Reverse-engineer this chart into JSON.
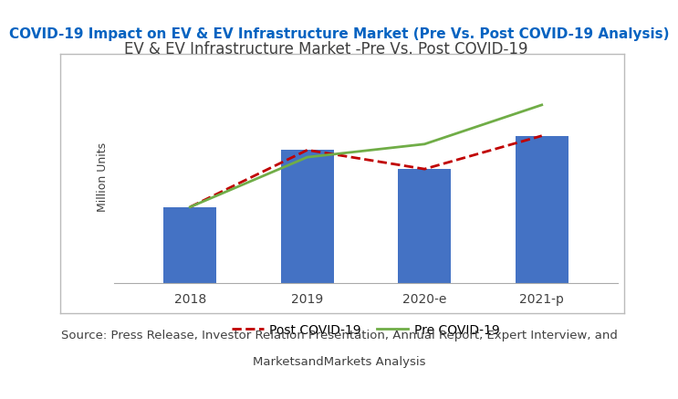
{
  "title_main": "COVID-19 Impact on EV & EV Infrastructure Market (Pre Vs. Post COVID-19 Analysis)",
  "title_chart": "EV & EV Infrastructure Market -Pre Vs. Post COVID-19",
  "ylabel": "Million Units",
  "source_line1": "Source: Press Release, Investor Relation Presentation, Annual Report, Expert Interview, and",
  "source_line2": "MarketsandMarkets Analysis",
  "categories": [
    "2018",
    "2019",
    "2020-e",
    "2021-p"
  ],
  "bar_values": [
    3.2,
    5.6,
    4.8,
    6.2
  ],
  "post_covid": [
    3.2,
    5.6,
    4.8,
    6.2
  ],
  "pre_covid": [
    3.2,
    5.3,
    5.85,
    7.5
  ],
  "bar_color": "#4472C4",
  "post_covid_color": "#C00000",
  "pre_covid_color": "#70AD47",
  "bg_color": "#FFFFFF",
  "border_color": "#BBBBBB",
  "title_main_color": "#0563C1",
  "title_chart_color": "#404040",
  "source_color": "#404040",
  "legend_post": "Post COVID-19",
  "legend_pre": "Pre COVID-19",
  "source_fontsize": 9.5,
  "title_main_fontsize": 11,
  "title_chart_fontsize": 12,
  "ylabel_fontsize": 9,
  "tick_fontsize": 10,
  "ylim": [
    0,
    9
  ],
  "bar_width": 0.45
}
